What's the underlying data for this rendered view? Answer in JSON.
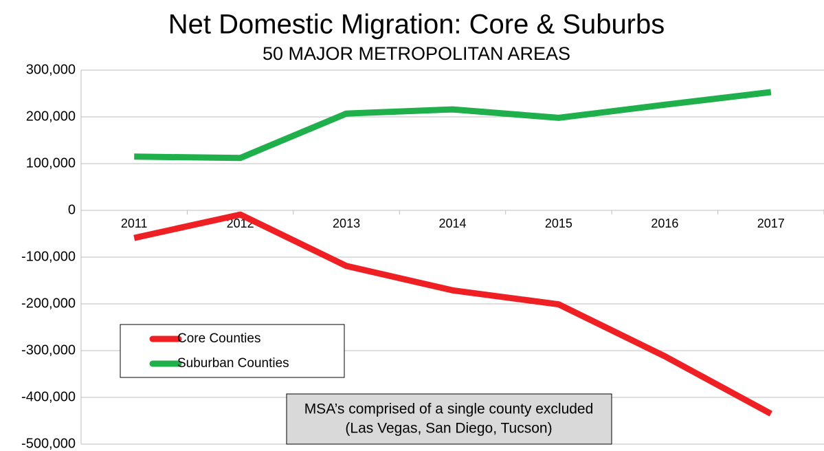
{
  "chart_data": {
    "type": "line",
    "title": "Net Domestic Migration: Core & Suburbs",
    "subtitle": "50 MAJOR METROPOLITAN AREAS",
    "categories": [
      "2011",
      "2012",
      "2013",
      "2014",
      "2015",
      "2016",
      "2017"
    ],
    "series": [
      {
        "name": "Core Counties",
        "color": "#ee2024",
        "values": [
          -59000,
          -9000,
          -119000,
          -171000,
          -201000,
          -312000,
          -435000
        ]
      },
      {
        "name": "Suburban Counties",
        "color": "#1fb04b",
        "values": [
          115000,
          112000,
          207000,
          216000,
          198000,
          226000,
          253000
        ]
      }
    ],
    "ylim": [
      -500000,
      300000
    ],
    "yticks": [
      {
        "value": -500000,
        "label": "-500,000"
      },
      {
        "value": -400000,
        "label": "-400,000"
      },
      {
        "value": -300000,
        "label": "-300,000"
      },
      {
        "value": -200000,
        "label": "-200,000"
      },
      {
        "value": -100000,
        "label": "-100,000"
      },
      0,
      {
        "value": 100000,
        "label": "100,000"
      },
      {
        "value": 200000,
        "label": "200,000"
      },
      {
        "value": 300000,
        "label": "300,000"
      }
    ],
    "grid": true,
    "legend": "lower left",
    "annotation": [
      "MSA’s comprised of a single county excluded",
      "(Las Vegas, San Diego, Tucson)"
    ]
  }
}
